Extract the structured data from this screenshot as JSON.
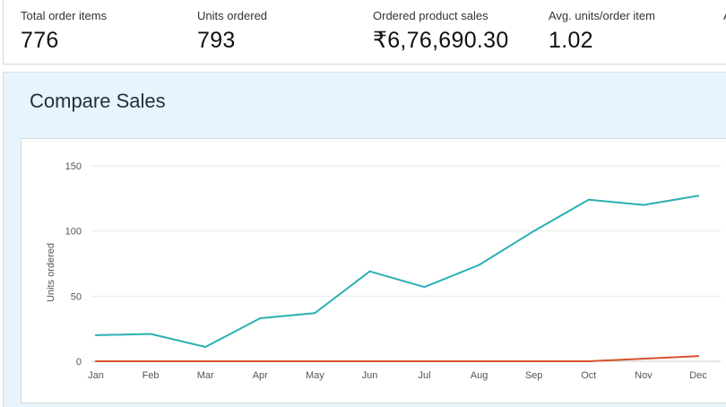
{
  "metrics": [
    {
      "label": "Total order items",
      "value": "776"
    },
    {
      "label": "Units ordered",
      "value": "793"
    },
    {
      "label": "Ordered product sales",
      "value": "₹6,76,690.30"
    },
    {
      "label": "Avg. units/order item",
      "value": "1.02"
    },
    {
      "label": "A",
      "value": ""
    }
  ],
  "compare": {
    "title": "Compare Sales"
  },
  "colors": {
    "series_primary": "#2ab0b5",
    "series_secondary": "#d9502b",
    "panel_background": "#e7f4fb"
  },
  "chart_data": {
    "type": "line",
    "title": "",
    "xlabel": "",
    "ylabel": "Units ordered",
    "categories": [
      "Jan",
      "Feb",
      "Mar",
      "Apr",
      "May",
      "Jun",
      "Jul",
      "Aug",
      "Sep",
      "Oct",
      "Nov",
      "Dec"
    ],
    "y_ticks": [
      0,
      50,
      100,
      150
    ],
    "ylim": [
      0,
      150
    ],
    "grid": true,
    "series": [
      {
        "values": [
          20,
          21,
          11,
          33,
          37,
          69,
          57,
          74,
          100,
          124,
          120,
          127
        ],
        "color": "#2ab0b5"
      },
      {
        "values": [
          0,
          0,
          0,
          0,
          0,
          0,
          0,
          0,
          0,
          0,
          2,
          4
        ],
        "color": "#d9502b"
      }
    ]
  }
}
